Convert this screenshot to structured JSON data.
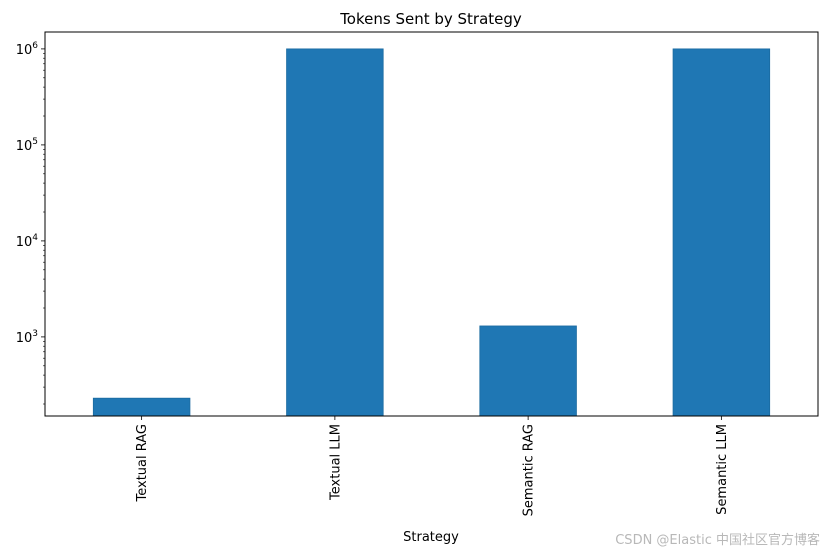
{
  "chart_data": {
    "type": "bar",
    "title": "Tokens Sent by Strategy",
    "xlabel": "Strategy",
    "ylabel": "",
    "yscale": "log",
    "ylim": [
      150,
      1500000
    ],
    "yticks": [
      1000,
      10000,
      100000,
      1000000
    ],
    "ytick_labels": [
      {
        "base": "10",
        "exp": "3"
      },
      {
        "base": "10",
        "exp": "4"
      },
      {
        "base": "10",
        "exp": "5"
      },
      {
        "base": "10",
        "exp": "6"
      }
    ],
    "categories": [
      "Textual RAG",
      "Textual LLM",
      "Semantic RAG",
      "Semantic LLM"
    ],
    "values": [
      230,
      1000000,
      1300,
      1000000
    ],
    "bar_color": "#1f77b4",
    "grid": false,
    "legend": false
  },
  "watermark": "CSDN @Elastic 中国社区官方博客"
}
